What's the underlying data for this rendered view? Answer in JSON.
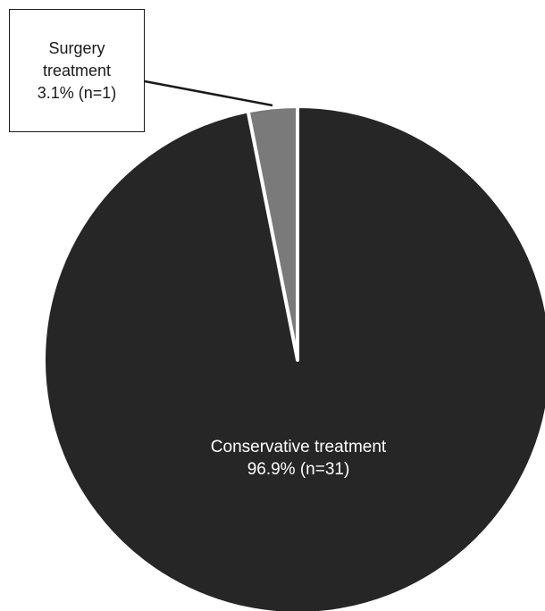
{
  "chart_data": {
    "type": "pie",
    "slices": [
      {
        "name": "Surgery treatment",
        "percent_label": "3.1% (n=1)",
        "value": 1,
        "percent": 3.1,
        "color": "#7a7a7a"
      },
      {
        "name": "Conservative treatment",
        "percent_label": "96.9% (n=31)",
        "value": 31,
        "percent": 96.9,
        "color": "#262626"
      }
    ],
    "labels": {
      "surgery_line1": "Surgery",
      "surgery_line2": "treatment",
      "surgery_line3": "3.1% (n=1)",
      "conservative_line1": "Conservative treatment",
      "conservative_line2": "96.9% (n=31)"
    },
    "start_angle": "top",
    "direction": "counterclockwise",
    "slice_border_color": "#ffffff"
  }
}
